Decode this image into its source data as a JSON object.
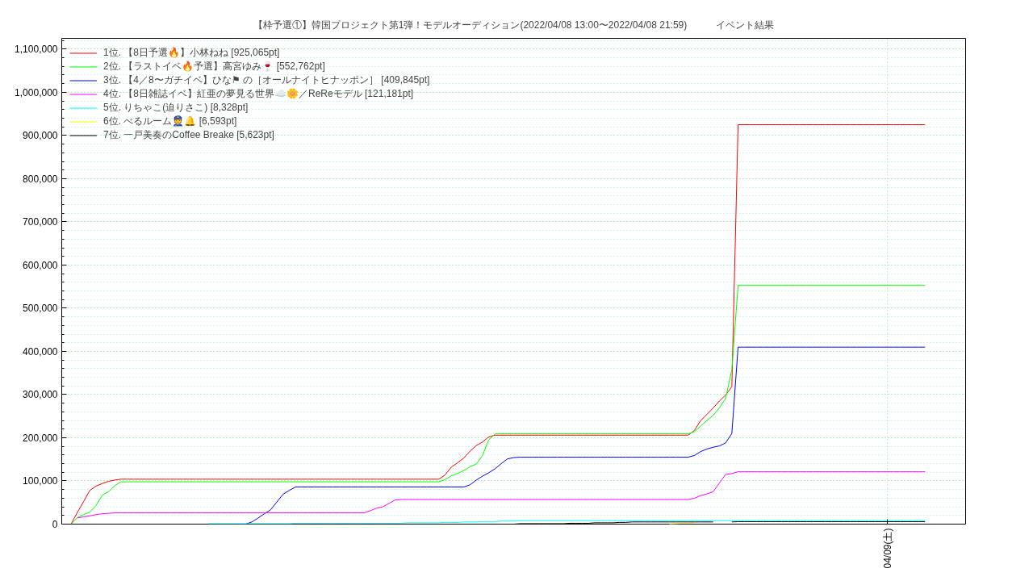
{
  "chart_data": {
    "type": "line",
    "title": "【枠予選①】韓国プロジェクト第1弾！モデルオーディション(2022/04/08 13:00〜2022/04/08 21:59)　　　イベント結果",
    "categories": [
      null,
      null,
      null,
      null,
      null,
      null,
      null,
      null,
      null,
      null,
      null,
      null,
      null,
      null,
      null,
      null,
      null,
      null,
      null,
      null,
      null,
      null,
      null,
      null,
      null,
      null,
      null,
      null,
      null,
      null,
      null,
      null,
      null,
      null,
      null,
      null,
      null,
      null,
      null,
      null,
      null,
      null,
      null,
      null,
      null,
      null,
      null,
      null,
      null,
      null,
      null,
      null,
      null,
      null,
      null,
      null,
      null,
      null,
      null,
      null,
      null,
      null,
      null,
      null,
      null,
      null,
      null,
      null,
      null,
      null,
      null,
      null,
      null,
      null,
      null,
      null,
      null,
      null,
      null,
      null,
      null,
      null,
      null,
      null,
      null,
      null,
      null,
      null,
      null,
      null,
      null,
      null,
      null,
      null,
      null,
      null,
      null,
      null,
      null,
      null,
      null,
      null,
      null,
      null,
      null,
      null,
      null,
      null,
      null,
      null,
      null,
      null,
      null,
      null,
      null,
      null,
      null,
      null,
      null,
      null,
      null,
      null,
      null,
      null,
      null,
      null,
      null,
      null,
      null,
      null,
      null,
      null,
      "04/09(土)",
      null,
      null,
      null,
      null,
      null,
      null,
      null,
      null,
      null,
      null,
      null,
      null
    ],
    "ylim": [
      0,
      1125000
    ],
    "yticks": [
      {
        "value": 0,
        "label": "0"
      },
      {
        "value": 100000,
        "label": "100,000"
      },
      {
        "value": 200000,
        "label": "200,000"
      },
      {
        "value": 300000,
        "label": "300,000"
      },
      {
        "value": 400000,
        "label": "400,000"
      },
      {
        "value": 500000,
        "label": "500,000"
      },
      {
        "value": 600000,
        "label": "600,000"
      },
      {
        "value": 700000,
        "label": "700,000"
      },
      {
        "value": 800000,
        "label": "800,000"
      },
      {
        "value": 900000,
        "label": "900,000"
      },
      {
        "value": 1000000,
        "label": "1,000,000"
      },
      {
        "value": 1100000,
        "label": "1,100,000"
      }
    ],
    "grid": true,
    "legend": "top left",
    "series": [
      {
        "name": "1位. 【8日予選🔥】小林ねね [925,065pt]",
        "color": "#ff0000",
        "values": [
          null,
          0,
          27000,
          52000,
          78000,
          88000,
          94000,
          99000,
          102000,
          104000,
          104000,
          104000,
          104000,
          104000,
          104000,
          104000,
          104000,
          104000,
          104000,
          104000,
          104000,
          104000,
          104000,
          104000,
          104000,
          104000,
          104000,
          104000,
          104000,
          104000,
          104000,
          104000,
          104000,
          104000,
          104000,
          104000,
          104000,
          104000,
          104000,
          104000,
          104000,
          104000,
          104000,
          104000,
          104000,
          104000,
          104000,
          104000,
          104000,
          104000,
          104000,
          104000,
          104000,
          104000,
          104000,
          104000,
          104000,
          104000,
          104000,
          104000,
          104000,
          114000,
          132000,
          142000,
          153000,
          169000,
          182000,
          190000,
          202000,
          206000,
          206000,
          206000,
          206000,
          206000,
          206000,
          206000,
          206000,
          206000,
          206000,
          206000,
          206000,
          206000,
          206000,
          206000,
          206000,
          206000,
          206000,
          206000,
          206000,
          206000,
          206000,
          206000,
          206000,
          206000,
          206000,
          206000,
          206000,
          206000,
          206000,
          206000,
          206000,
          217000,
          240000,
          254000,
          269000,
          285000,
          299000,
          318000,
          925065,
          925065,
          925065,
          925065,
          925065,
          925065,
          925065,
          925065,
          925065,
          925065,
          925065,
          925065,
          925065,
          925065,
          925065,
          925065,
          925065,
          925065,
          925065,
          925065,
          925065,
          925065,
          925065,
          925065,
          925065,
          925065,
          925065,
          925065,
          925065,
          925065,
          925065,
          null,
          null,
          null,
          null,
          null,
          null
        ]
      },
      {
        "name": "2位. 【ラストイベ🔥予選】高宮ゆみ🍷 [552,762pt]",
        "color": "#00ff00",
        "values": [
          null,
          0,
          15000,
          22000,
          28000,
          43000,
          67000,
          75000,
          89000,
          98000,
          98000,
          98000,
          98000,
          98000,
          98000,
          98000,
          98000,
          98000,
          98000,
          98000,
          98000,
          98000,
          98000,
          98000,
          98000,
          98000,
          98000,
          98000,
          98000,
          98000,
          98000,
          98000,
          98000,
          98000,
          98000,
          98000,
          98000,
          98000,
          98000,
          98000,
          98000,
          98000,
          98000,
          98000,
          98000,
          98000,
          98000,
          98000,
          98000,
          98000,
          98000,
          98000,
          98000,
          98000,
          98000,
          98000,
          98000,
          98000,
          98000,
          98000,
          98000,
          103000,
          112000,
          117000,
          124000,
          133000,
          139000,
          159000,
          195000,
          209000,
          209000,
          209000,
          209000,
          209000,
          209000,
          209000,
          209000,
          209000,
          209000,
          209000,
          209000,
          209000,
          209000,
          209000,
          209000,
          209000,
          209000,
          209000,
          209000,
          209000,
          209000,
          209000,
          209000,
          209000,
          209000,
          209000,
          209000,
          209000,
          209000,
          209000,
          209000,
          214000,
          227000,
          240000,
          252000,
          269000,
          291000,
          358000,
          552762,
          552762,
          552762,
          552762,
          552762,
          552762,
          552762,
          552762,
          552762,
          552762,
          552762,
          552762,
          552762,
          552762,
          552762,
          552762,
          552762,
          552762,
          552762,
          552762,
          552762,
          552762,
          552762,
          552762,
          552762,
          552762,
          552762,
          552762,
          552762,
          552762,
          552762,
          null,
          null,
          null,
          null,
          null,
          null
        ]
      },
      {
        "name": "3位. 【4／8〜ガチイベ】ひな⚑ の［オールナイトヒナッポン］ [409,845pt]",
        "color": "#0000ff",
        "values": [
          null,
          null,
          null,
          null,
          null,
          null,
          null,
          null,
          null,
          null,
          null,
          null,
          null,
          null,
          null,
          null,
          null,
          null,
          null,
          null,
          null,
          null,
          null,
          null,
          null,
          null,
          null,
          null,
          0,
          0,
          5000,
          14000,
          24000,
          33000,
          51000,
          69000,
          78000,
          86000,
          86000,
          86000,
          86000,
          86000,
          86000,
          86000,
          86000,
          86000,
          86000,
          86000,
          86000,
          86000,
          86000,
          86000,
          86000,
          86000,
          86000,
          86000,
          86000,
          86000,
          86000,
          86000,
          86000,
          86000,
          86000,
          86000,
          86000,
          91000,
          102000,
          111000,
          119000,
          128000,
          140000,
          151000,
          154000,
          155000,
          155000,
          155000,
          155000,
          155000,
          155000,
          155000,
          155000,
          155000,
          155000,
          155000,
          155000,
          155000,
          155000,
          155000,
          155000,
          155000,
          155000,
          155000,
          155000,
          155000,
          155000,
          155000,
          155000,
          155000,
          155000,
          155000,
          155000,
          159000,
          168000,
          174000,
          178000,
          181000,
          188000,
          210000,
          409845,
          409845,
          409845,
          409845,
          409845,
          409845,
          409845,
          409845,
          409845,
          409845,
          409845,
          409845,
          409845,
          409845,
          409845,
          409845,
          409845,
          409845,
          409845,
          409845,
          409845,
          409845,
          409845,
          409845,
          409845,
          409845,
          409845,
          409845,
          409845,
          409845,
          409845,
          null,
          null,
          null,
          null,
          null,
          null
        ]
      },
      {
        "name": "4位. 【8日雑誌イベ】紅亜の夢見る世界☁️🌼／ReReモデル [121,181pt]",
        "color": "#ff00ff",
        "values": [
          null,
          null,
          14000,
          17000,
          19000,
          22000,
          24000,
          25000,
          26000,
          26000,
          26000,
          26000,
          26000,
          26000,
          26000,
          26000,
          26000,
          26000,
          26000,
          26000,
          26000,
          26000,
          26000,
          26000,
          26000,
          26000,
          26000,
          26000,
          26000,
          26000,
          26000,
          26000,
          26000,
          26000,
          26000,
          26000,
          26000,
          26000,
          26000,
          26000,
          26000,
          26000,
          26000,
          26000,
          26000,
          26000,
          26000,
          26000,
          26000,
          31000,
          37000,
          40000,
          48000,
          56000,
          57000,
          57000,
          57000,
          57000,
          57000,
          57000,
          57000,
          57000,
          57000,
          57000,
          57000,
          57000,
          57000,
          57000,
          57000,
          57000,
          57000,
          57000,
          57000,
          57000,
          57000,
          57000,
          57000,
          57000,
          57000,
          57000,
          57000,
          57000,
          57000,
          57000,
          57000,
          57000,
          57000,
          57000,
          57000,
          57000,
          57000,
          57000,
          57000,
          57000,
          57000,
          57000,
          57000,
          57000,
          57000,
          57000,
          57000,
          60000,
          66000,
          70000,
          75000,
          95000,
          115000,
          117000,
          121181,
          121181,
          121181,
          121181,
          121181,
          121181,
          121181,
          121181,
          121181,
          121181,
          121181,
          121181,
          121181,
          121181,
          121181,
          121181,
          121181,
          121181,
          121181,
          121181,
          121181,
          121181,
          121181,
          121181,
          121181,
          121181,
          121181,
          121181,
          121181,
          121181,
          121181,
          null,
          null,
          null,
          null,
          null,
          null
        ]
      },
      {
        "name": "5位. りちゃこ(迫りさこ) [8,328pt]",
        "color": "#00ffff",
        "values": [
          null,
          null,
          null,
          null,
          null,
          null,
          null,
          null,
          null,
          null,
          null,
          null,
          null,
          null,
          null,
          null,
          null,
          null,
          null,
          null,
          null,
          null,
          null,
          1000,
          1000,
          1000,
          1000,
          1000,
          1000,
          1000,
          1000,
          1000,
          1000,
          1000,
          1000,
          1000,
          1000,
          2000,
          2000,
          2000,
          2000,
          2000,
          2000,
          2000,
          2000,
          2000,
          2000,
          2000,
          2000,
          2000,
          2000,
          2000,
          2000,
          2000,
          2000,
          3000,
          3000,
          3000,
          3000,
          3000,
          3000,
          4000,
          4000,
          4000,
          5000,
          5000,
          5000,
          6000,
          6000,
          6000,
          7000,
          7000,
          7000,
          8000,
          8000,
          8000,
          8000,
          8000,
          8000,
          8000,
          8000,
          8000,
          8000,
          8000,
          8000,
          8000,
          8000,
          8000,
          8000,
          8000,
          8000,
          8000,
          8000,
          8000,
          8000,
          8000,
          8000,
          8000,
          8000,
          8000,
          8000,
          8000,
          8000,
          8000,
          8000,
          8000,
          8000,
          8000,
          8328,
          8328,
          8328,
          8328,
          8328,
          8328,
          8328,
          8328,
          8328,
          8328,
          8328,
          8328,
          8328,
          8328,
          8328,
          8328,
          8328,
          8328,
          8328,
          8328,
          8328,
          8328,
          8328,
          8328,
          8328,
          8328,
          8328,
          8328,
          8328,
          8328,
          8328,
          null,
          null,
          null,
          null,
          null,
          null
        ]
      },
      {
        "name": "6位. べるルーム👮🔔 [6,593pt]",
        "color": "#ffff00",
        "values": [
          null,
          null,
          null,
          null,
          null,
          null,
          null,
          null,
          null,
          null,
          null,
          null,
          null,
          null,
          null,
          null,
          null,
          null,
          null,
          null,
          null,
          null,
          null,
          null,
          null,
          null,
          null,
          null,
          null,
          null,
          null,
          null,
          null,
          null,
          null,
          null,
          null,
          null,
          null,
          null,
          null,
          null,
          null,
          null,
          null,
          null,
          null,
          null,
          null,
          null,
          null,
          null,
          null,
          null,
          null,
          null,
          null,
          null,
          null,
          null,
          null,
          null,
          null,
          null,
          null,
          null,
          null,
          null,
          null,
          null,
          null,
          null,
          null,
          null,
          null,
          null,
          null,
          null,
          null,
          null,
          null,
          null,
          null,
          null,
          null,
          null,
          null,
          null,
          null,
          null,
          null,
          null,
          null,
          null,
          null,
          null,
          null,
          0,
          1000,
          2000,
          2000,
          3000,
          null,
          null,
          null,
          null,
          null,
          null,
          null,
          null,
          null,
          null,
          null,
          null,
          null,
          null,
          null,
          null,
          null,
          null,
          null,
          null,
          null,
          null,
          null,
          null,
          null,
          null,
          null,
          null,
          null,
          null,
          null,
          null,
          null,
          null,
          null,
          null,
          null,
          null,
          null,
          null,
          null,
          null,
          null
        ]
      },
      {
        "name": "7位. 一戸美奏のCoffee Breake [5,623pt]",
        "color": "#000000",
        "values": [
          null,
          null,
          null,
          null,
          null,
          null,
          null,
          null,
          null,
          null,
          null,
          null,
          null,
          null,
          null,
          null,
          null,
          null,
          null,
          null,
          null,
          null,
          null,
          null,
          null,
          null,
          null,
          null,
          null,
          null,
          null,
          null,
          null,
          null,
          null,
          null,
          null,
          null,
          null,
          null,
          null,
          null,
          null,
          null,
          null,
          null,
          null,
          null,
          null,
          null,
          null,
          null,
          null,
          null,
          null,
          null,
          null,
          null,
          null,
          null,
          null,
          null,
          null,
          null,
          null,
          null,
          null,
          null,
          null,
          null,
          null,
          0,
          0,
          1000,
          1000,
          1000,
          1000,
          1000,
          1000,
          1000,
          1000,
          2000,
          2000,
          2000,
          2000,
          3000,
          3000,
          3000,
          3000,
          4000,
          4000,
          5000,
          5000,
          5000,
          5000,
          5000,
          5000,
          5000,
          5000,
          5000,
          5000,
          5000,
          5000,
          5000,
          5000,
          null,
          null,
          5000,
          5623,
          5623,
          5623,
          5623,
          5623,
          5623,
          5623,
          5623,
          5623,
          5623,
          5623,
          5623,
          5623,
          5623,
          5623,
          5623,
          5623,
          5623,
          5623,
          5623,
          5623,
          5623,
          5623,
          5623,
          5623,
          5623,
          5623,
          5623,
          5623,
          5623,
          5623,
          null,
          null,
          null,
          null,
          null,
          null
        ]
      }
    ]
  }
}
